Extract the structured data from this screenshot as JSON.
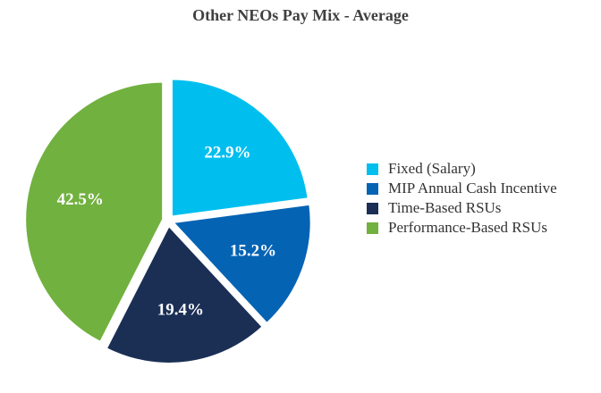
{
  "chart_data": {
    "type": "pie",
    "title": "Other NEOs Pay Mix - Average",
    "slices": [
      {
        "label": "Fixed (Salary)",
        "value": 22.9,
        "display": "22.9%",
        "color": "#00bfef"
      },
      {
        "label": "MIP Annual Cash Incentive",
        "value": 15.2,
        "display": "15.2%",
        "color": "#0563b4"
      },
      {
        "label": "Time-Based RSUs",
        "value": 19.4,
        "display": "19.4%",
        "color": "#1b2f55"
      },
      {
        "label": "Performance-Based RSUs",
        "value": 42.5,
        "display": "42.5%",
        "color": "#71b13f"
      }
    ],
    "legend_position": "right"
  }
}
